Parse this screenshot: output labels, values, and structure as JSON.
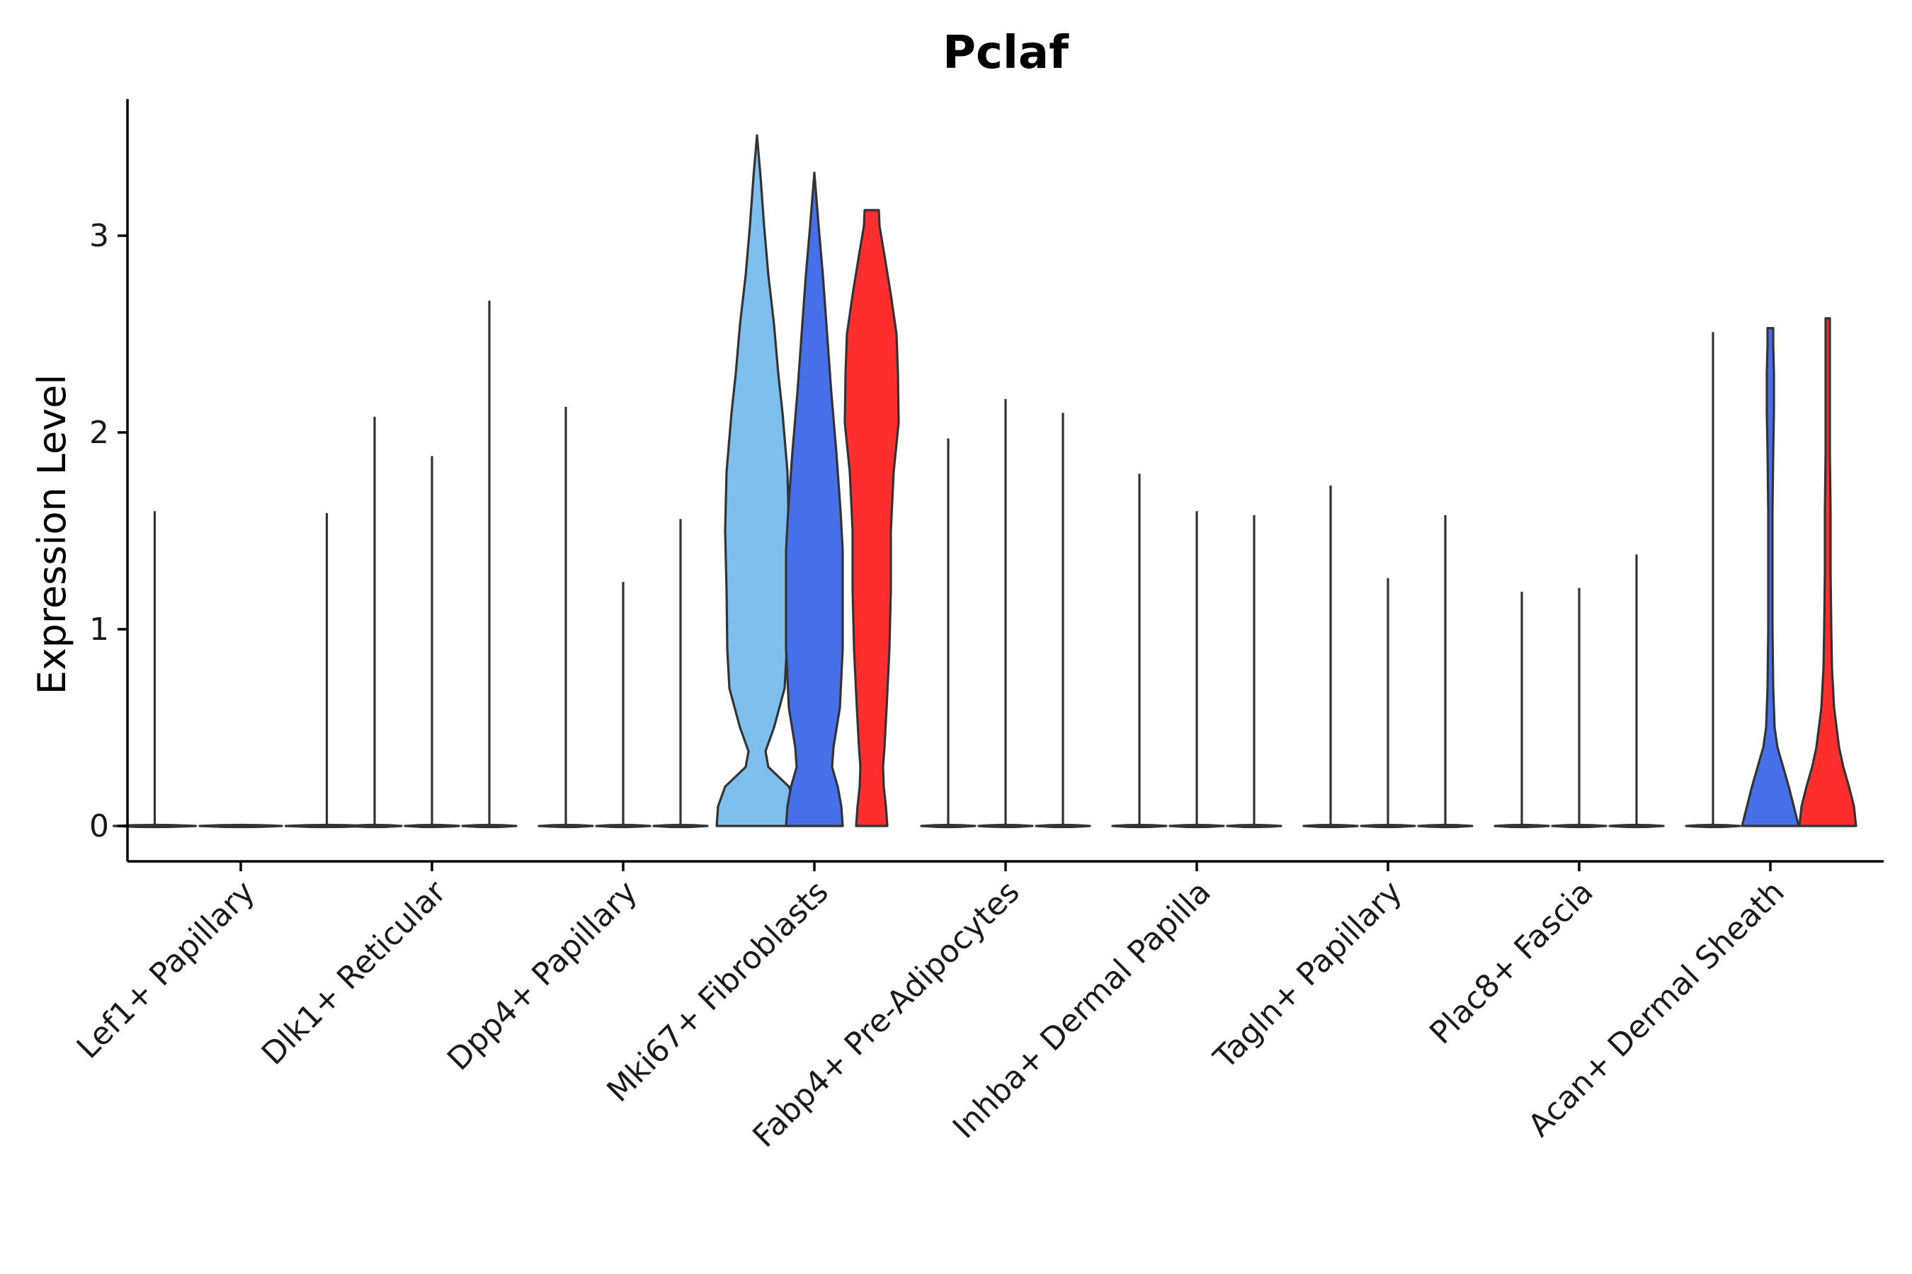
{
  "chart_data": {
    "type": "violin",
    "title": "Pclaf",
    "ylabel": "Expression Level",
    "xlabel": "",
    "ylim": [
      -0.18,
      3.7
    ],
    "yticks": [
      0,
      1,
      2,
      3
    ],
    "ytick_labels": [
      "0",
      "1",
      "2",
      "3"
    ],
    "grid": false,
    "legend": "none",
    "colors": {
      "light_blue": "#7FBFED",
      "blue": "#476FEA",
      "red": "#FF2E2E",
      "outline": "#333333"
    },
    "categories": [
      {
        "name": "Lef1+ Papillary",
        "violins": [
          {
            "offset": -0.45,
            "color": "#7FBFED",
            "max": 1.6,
            "shape": "zero"
          },
          {
            "offset": 0.0,
            "color": "#476FEA",
            "max": 0.0,
            "shape": "zero"
          },
          {
            "offset": 0.45,
            "color": "#FF2E2E",
            "max": 1.59,
            "shape": "zero"
          }
        ]
      },
      {
        "name": "Dlk1+ Reticular",
        "violins": [
          {
            "offset": -0.3,
            "color": "#7FBFED",
            "max": 2.08,
            "shape": "zero"
          },
          {
            "offset": 0.0,
            "color": "#476FEA",
            "max": 1.88,
            "shape": "zero"
          },
          {
            "offset": 0.3,
            "color": "#FF2E2E",
            "max": 2.67,
            "shape": "zero"
          }
        ]
      },
      {
        "name": "Dpp4+ Papillary",
        "violins": [
          {
            "offset": -0.3,
            "color": "#7FBFED",
            "max": 2.13,
            "shape": "zero"
          },
          {
            "offset": 0.0,
            "color": "#476FEA",
            "max": 1.24,
            "shape": "zero"
          },
          {
            "offset": 0.3,
            "color": "#FF2E2E",
            "max": 1.56,
            "shape": "zero"
          }
        ]
      },
      {
        "name": "Mki67+ Fibroblasts",
        "violins": [
          {
            "offset": -0.3,
            "color": "#7FBFED",
            "max": 3.51,
            "shape": "lightblue-mki"
          },
          {
            "offset": 0.0,
            "color": "#476FEA",
            "max": 3.32,
            "shape": "blue-mki"
          },
          {
            "offset": 0.3,
            "color": "#FF2E2E",
            "max": 3.13,
            "shape": "red-mki"
          }
        ]
      },
      {
        "name": "Fabp4+ Pre-Adipocytes",
        "violins": [
          {
            "offset": -0.3,
            "color": "#7FBFED",
            "max": 1.97,
            "shape": "zero"
          },
          {
            "offset": 0.0,
            "color": "#476FEA",
            "max": 2.17,
            "shape": "zero"
          },
          {
            "offset": 0.3,
            "color": "#FF2E2E",
            "max": 2.1,
            "shape": "zero"
          }
        ]
      },
      {
        "name": "Inhba+ Dermal Papilla",
        "violins": [
          {
            "offset": -0.3,
            "color": "#7FBFED",
            "max": 1.79,
            "shape": "zero"
          },
          {
            "offset": 0.0,
            "color": "#476FEA",
            "max": 1.6,
            "shape": "zero"
          },
          {
            "offset": 0.3,
            "color": "#FF2E2E",
            "max": 1.58,
            "shape": "zero"
          }
        ]
      },
      {
        "name": "Tagln+ Papillary",
        "violins": [
          {
            "offset": -0.3,
            "color": "#7FBFED",
            "max": 1.73,
            "shape": "zero"
          },
          {
            "offset": 0.0,
            "color": "#476FEA",
            "max": 1.26,
            "shape": "zero"
          },
          {
            "offset": 0.3,
            "color": "#FF2E2E",
            "max": 1.58,
            "shape": "zero"
          }
        ]
      },
      {
        "name": "Plac8+ Fascia",
        "violins": [
          {
            "offset": -0.3,
            "color": "#7FBFED",
            "max": 1.19,
            "shape": "zero"
          },
          {
            "offset": 0.0,
            "color": "#476FEA",
            "max": 1.21,
            "shape": "zero"
          },
          {
            "offset": 0.3,
            "color": "#FF2E2E",
            "max": 1.38,
            "shape": "zero"
          }
        ]
      },
      {
        "name": "Acan+ Dermal Sheath",
        "violins": [
          {
            "offset": -0.3,
            "color": "#7FBFED",
            "max": 2.51,
            "shape": "zero"
          },
          {
            "offset": 0.0,
            "color": "#476FEA",
            "max": 2.53,
            "shape": "blue-acan"
          },
          {
            "offset": 0.3,
            "color": "#FF2E2E",
            "max": 2.58,
            "shape": "red-acan"
          }
        ]
      }
    ]
  }
}
